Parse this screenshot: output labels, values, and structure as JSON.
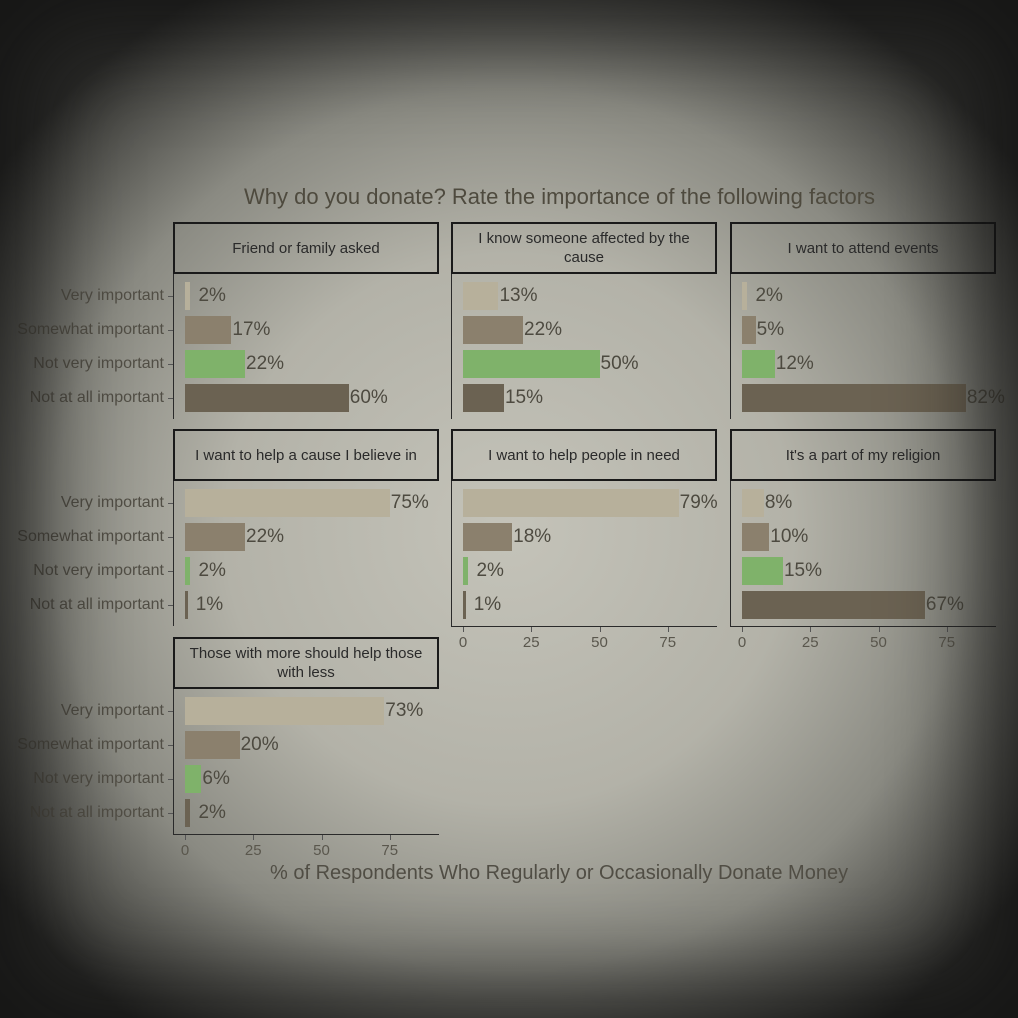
{
  "chart_data": {
    "type": "bar",
    "orientation": "horizontal",
    "title": "Why do you donate? Rate the importance of the following factors",
    "xlabel": "% of Respondents Who Regularly or Occasionally Donate Money",
    "categories": [
      "Very important",
      "Somewhat important",
      "Not very important",
      "Not at all important"
    ],
    "xlim": [
      0,
      92
    ],
    "xticks": [
      0,
      25,
      50,
      75
    ],
    "xtick_labels": [
      "0",
      "25",
      "50",
      "75"
    ],
    "colors": {
      "Very important": "#b7b09b",
      "Somewhat important": "#8b806d",
      "Not very important": "#7fb26a",
      "Not at all important": "#6b6252"
    },
    "panels": [
      {
        "title": "Friend or family asked",
        "values": [
          2,
          17,
          22,
          60
        ],
        "labels": [
          "2%",
          "17%",
          "22%",
          "60%"
        ]
      },
      {
        "title": "I know someone affected by the cause",
        "values": [
          13,
          22,
          50,
          15
        ],
        "labels": [
          "13%",
          "22%",
          "50%",
          "15%"
        ]
      },
      {
        "title": "I want to attend events",
        "values": [
          2,
          5,
          12,
          82
        ],
        "labels": [
          "2%",
          "5%",
          "12%",
          "82%"
        ]
      },
      {
        "title": "I want to help a cause I believe in",
        "values": [
          75,
          22,
          2,
          1
        ],
        "labels": [
          "75%",
          "22%",
          "2%",
          "1%"
        ]
      },
      {
        "title": "I want to help people in need",
        "values": [
          79,
          18,
          2,
          1
        ],
        "labels": [
          "79%",
          "18%",
          "2%",
          "1%"
        ]
      },
      {
        "title": "It's a part of my religion",
        "values": [
          8,
          10,
          15,
          67
        ],
        "labels": [
          "8%",
          "10%",
          "15%",
          "67%"
        ]
      },
      {
        "title": "Those with more should help those with less",
        "values": [
          73,
          20,
          6,
          2
        ],
        "labels": [
          "73%",
          "20%",
          "6%",
          "2%"
        ]
      }
    ]
  }
}
